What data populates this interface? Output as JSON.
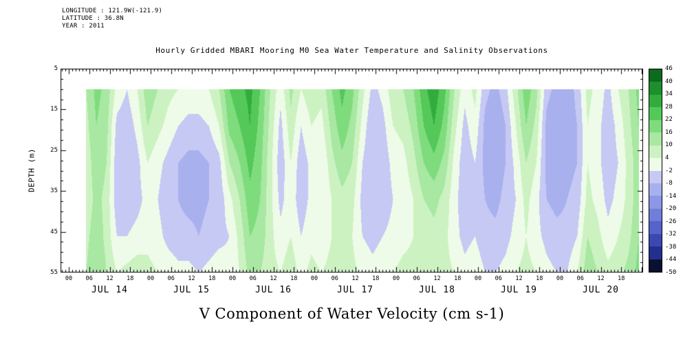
{
  "header": {
    "longitude": "LONGITUDE : 121.9W(-121.9)",
    "latitude": "LATITUDE : 36.8N",
    "year": "YEAR : 2011"
  },
  "title": "Hourly Gridded MBARI Mooring M0 Sea Water Temperature and Salinity Observations",
  "caption": "V Component of Water Velocity (cm s-1)",
  "axes": {
    "ylabel": "DEPTH (m)",
    "y_tick_labels": [
      "5",
      "15",
      "25",
      "35",
      "45",
      "55"
    ],
    "y_tick_depths": [
      5,
      15,
      25,
      35,
      45,
      55
    ],
    "hour_tick_labels": [
      "00",
      "06",
      "12",
      "18"
    ],
    "day_labels": [
      "JUL 14",
      "JUL 15",
      "JUL 16",
      "JUL 17",
      "JUL 18",
      "JUL 19",
      "JUL 20"
    ]
  },
  "chart_data": {
    "type": "heatmap",
    "title": "Hourly Gridded MBARI Mooring M0 Sea Water Temperature and Salinity Observations",
    "xlabel": "",
    "ylabel": "DEPTH (m)",
    "units": "cm s-1",
    "y_axis_range": [
      5,
      55
    ],
    "x_day_labels": [
      "JUL 14",
      "JUL 15",
      "JUL 16",
      "JUL 17",
      "JUL 18",
      "JUL 19",
      "JUL 20"
    ],
    "hour_tick_labels": [
      "00",
      "06",
      "12",
      "18"
    ],
    "depths_m": [
      10,
      19,
      28,
      37,
      46,
      55
    ],
    "x_hours": [
      5,
      8,
      11,
      14,
      17,
      20,
      23,
      26,
      29,
      32,
      35,
      38,
      41,
      44,
      47,
      50,
      53,
      56,
      59,
      62,
      65,
      68,
      71,
      74,
      77,
      80,
      83,
      86,
      89,
      92,
      95,
      98,
      101,
      104,
      107,
      110,
      113,
      116,
      119,
      122,
      125,
      128,
      131,
      134,
      137,
      140,
      143,
      146,
      149,
      152,
      155,
      158,
      161,
      164,
      167
    ],
    "values": [
      [
        10,
        8,
        6,
        6,
        8,
        10
      ],
      [
        18,
        16,
        14,
        12,
        14,
        16
      ],
      [
        14,
        12,
        10,
        8,
        8,
        10
      ],
      [
        2,
        -4,
        -6,
        -6,
        -2,
        4
      ],
      [
        -2,
        -6,
        -8,
        -6,
        -2,
        6
      ],
      [
        4,
        0,
        -4,
        -4,
        0,
        8
      ],
      [
        14,
        10,
        4,
        0,
        2,
        6
      ],
      [
        10,
        6,
        0,
        -2,
        0,
        4
      ],
      [
        6,
        2,
        -4,
        -6,
        -4,
        2
      ],
      [
        4,
        -2,
        -8,
        -8,
        -6,
        0
      ],
      [
        2,
        -4,
        -10,
        -10,
        -6,
        0
      ],
      [
        2,
        -4,
        -10,
        -10,
        -8,
        -2
      ],
      [
        4,
        -2,
        -8,
        -8,
        -6,
        0
      ],
      [
        10,
        4,
        -4,
        -6,
        -4,
        2
      ],
      [
        22,
        18,
        10,
        2,
        -2,
        0
      ],
      [
        26,
        22,
        16,
        10,
        6,
        4
      ],
      [
        30,
        28,
        24,
        20,
        16,
        12
      ],
      [
        22,
        20,
        18,
        16,
        14,
        10
      ],
      [
        10,
        8,
        6,
        6,
        6,
        6
      ],
      [
        0,
        -4,
        -6,
        -4,
        0,
        4
      ],
      [
        12,
        8,
        4,
        2,
        4,
        8
      ],
      [
        4,
        -2,
        -6,
        -6,
        -2,
        2
      ],
      [
        8,
        4,
        0,
        0,
        2,
        6
      ],
      [
        6,
        2,
        -2,
        -2,
        0,
        4
      ],
      [
        16,
        12,
        8,
        4,
        4,
        6
      ],
      [
        24,
        20,
        14,
        8,
        6,
        8
      ],
      [
        18,
        14,
        10,
        6,
        4,
        6
      ],
      [
        6,
        2,
        -2,
        -4,
        -2,
        2
      ],
      [
        -4,
        -8,
        -8,
        -6,
        -4,
        0
      ],
      [
        0,
        -4,
        -6,
        -6,
        -2,
        2
      ],
      [
        8,
        4,
        0,
        -2,
        0,
        4
      ],
      [
        10,
        6,
        2,
        0,
        2,
        6
      ],
      [
        16,
        12,
        8,
        4,
        4,
        6
      ],
      [
        26,
        22,
        16,
        10,
        6,
        6
      ],
      [
        32,
        28,
        20,
        12,
        8,
        8
      ],
      [
        24,
        20,
        14,
        8,
        6,
        6
      ],
      [
        10,
        6,
        2,
        0,
        0,
        4
      ],
      [
        0,
        -4,
        -6,
        -6,
        -4,
        0
      ],
      [
        6,
        2,
        -2,
        -4,
        -2,
        2
      ],
      [
        -6,
        -10,
        -10,
        -8,
        -6,
        -2
      ],
      [
        -10,
        -14,
        -12,
        -10,
        -6,
        -2
      ],
      [
        -4,
        -8,
        -8,
        -6,
        -4,
        0
      ],
      [
        8,
        4,
        0,
        -2,
        0,
        4
      ],
      [
        20,
        16,
        10,
        6,
        4,
        6
      ],
      [
        12,
        8,
        4,
        0,
        0,
        4
      ],
      [
        -6,
        -10,
        -10,
        -8,
        -4,
        0
      ],
      [
        -10,
        -12,
        -12,
        -10,
        -6,
        -2
      ],
      [
        -12,
        -12,
        -10,
        -8,
        -6,
        -2
      ],
      [
        -6,
        -8,
        -8,
        -6,
        -2,
        4
      ],
      [
        6,
        4,
        4,
        6,
        10,
        14
      ],
      [
        2,
        0,
        0,
        2,
        6,
        10
      ],
      [
        -4,
        -6,
        -6,
        -4,
        0,
        6
      ],
      [
        4,
        0,
        -2,
        0,
        4,
        8
      ],
      [
        10,
        8,
        6,
        6,
        8,
        12
      ],
      [
        18,
        16,
        14,
        14,
        16,
        18
      ]
    ],
    "colorbar": {
      "levels": [
        -50,
        -44,
        -38,
        -32,
        -26,
        -20,
        -14,
        -8,
        -2,
        4,
        10,
        16,
        22,
        28,
        34,
        40,
        46
      ],
      "colors": [
        "#0a102f",
        "#232f8e",
        "#3a49b2",
        "#5464cb",
        "#707eda",
        "#8c97e5",
        "#a9b0ee",
        "#c6c9f4",
        "#eefbe8",
        "#ccf2c2",
        "#a8e8a2",
        "#7fdc7d",
        "#54c858",
        "#32ac3c",
        "#1d8f2c",
        "#0c6b1d"
      ],
      "tick_labels_top_to_bottom": [
        "46",
        "40",
        "34",
        "28",
        "22",
        "16",
        "10",
        "4",
        "-2",
        "-8",
        "-14",
        "-20",
        "-26",
        "-32",
        "-38",
        "-44",
        "-50"
      ]
    }
  }
}
